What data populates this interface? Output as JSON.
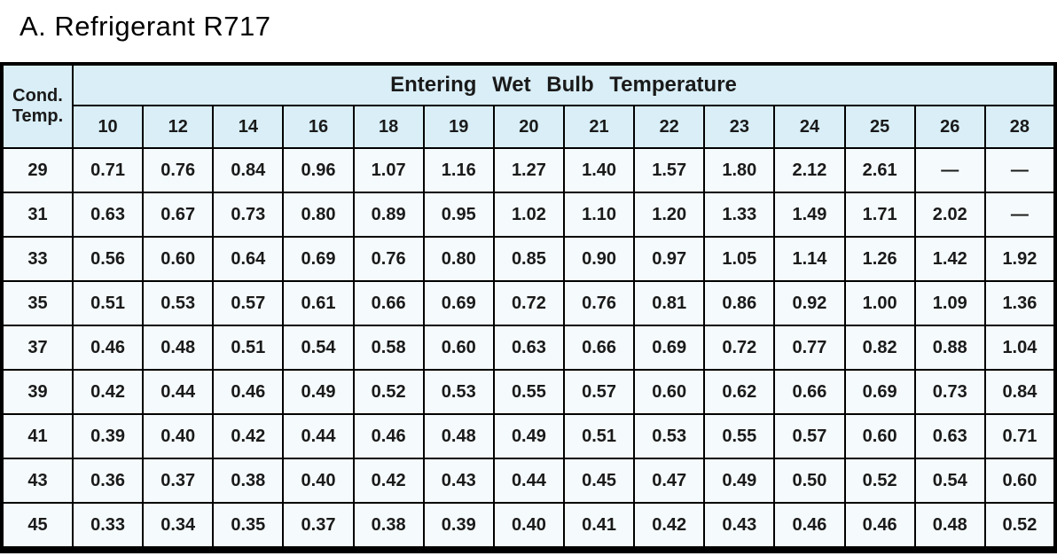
{
  "title": "A. Refrigerant R717",
  "colors": {
    "header_bg": "#d9eef6",
    "cell_bg": "#f5fafc",
    "border": "#000000"
  },
  "table": {
    "corner_header": "Cond.\nTemp.",
    "group_header": "Entering  Wet  Bulb  Temperature",
    "wet_bulb_temps": [
      "10",
      "12",
      "14",
      "16",
      "18",
      "19",
      "20",
      "21",
      "22",
      "23",
      "24",
      "25",
      "26",
      "28"
    ],
    "rows": [
      {
        "cond_temp": "29",
        "values": [
          "0.71",
          "0.76",
          "0.84",
          "0.96",
          "1.07",
          "1.16",
          "1.27",
          "1.40",
          "1.57",
          "1.80",
          "2.12",
          "2.61",
          "—",
          "—"
        ]
      },
      {
        "cond_temp": "31",
        "values": [
          "0.63",
          "0.67",
          "0.73",
          "0.80",
          "0.89",
          "0.95",
          "1.02",
          "1.10",
          "1.20",
          "1.33",
          "1.49",
          "1.71",
          "2.02",
          "—"
        ]
      },
      {
        "cond_temp": "33",
        "values": [
          "0.56",
          "0.60",
          "0.64",
          "0.69",
          "0.76",
          "0.80",
          "0.85",
          "0.90",
          "0.97",
          "1.05",
          "1.14",
          "1.26",
          "1.42",
          "1.92"
        ]
      },
      {
        "cond_temp": "35",
        "values": [
          "0.51",
          "0.53",
          "0.57",
          "0.61",
          "0.66",
          "0.69",
          "0.72",
          "0.76",
          "0.81",
          "0.86",
          "0.92",
          "1.00",
          "1.09",
          "1.36"
        ]
      },
      {
        "cond_temp": "37",
        "values": [
          "0.46",
          "0.48",
          "0.51",
          "0.54",
          "0.58",
          "0.60",
          "0.63",
          "0.66",
          "0.69",
          "0.72",
          "0.77",
          "0.82",
          "0.88",
          "1.04"
        ]
      },
      {
        "cond_temp": "39",
        "values": [
          "0.42",
          "0.44",
          "0.46",
          "0.49",
          "0.52",
          "0.53",
          "0.55",
          "0.57",
          "0.60",
          "0.62",
          "0.66",
          "0.69",
          "0.73",
          "0.84"
        ]
      },
      {
        "cond_temp": "41",
        "values": [
          "0.39",
          "0.40",
          "0.42",
          "0.44",
          "0.46",
          "0.48",
          "0.49",
          "0.51",
          "0.53",
          "0.55",
          "0.57",
          "0.60",
          "0.63",
          "0.71"
        ]
      },
      {
        "cond_temp": "43",
        "values": [
          "0.36",
          "0.37",
          "0.38",
          "0.40",
          "0.42",
          "0.43",
          "0.44",
          "0.45",
          "0.47",
          "0.49",
          "0.50",
          "0.52",
          "0.54",
          "0.60"
        ]
      },
      {
        "cond_temp": "45",
        "values": [
          "0.33",
          "0.34",
          "0.35",
          "0.37",
          "0.38",
          "0.39",
          "0.40",
          "0.41",
          "0.42",
          "0.43",
          "0.46",
          "0.46",
          "0.48",
          "0.52"
        ]
      }
    ]
  }
}
